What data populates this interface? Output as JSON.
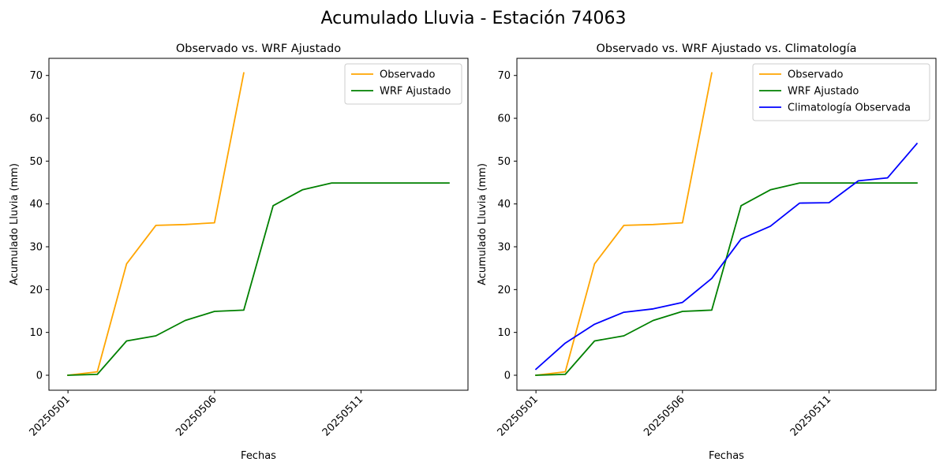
{
  "figure": {
    "suptitle": "Acumulado Lluvia - Estación 74063"
  },
  "chart_data": [
    {
      "type": "line",
      "title": "Observado vs. WRF Ajustado",
      "xlabel": "Fechas",
      "ylabel": "Acumulado Lluvia (mm)",
      "x": [
        "20250501",
        "20250502",
        "20250503",
        "20250504",
        "20250505",
        "20250506",
        "20250507",
        "20250508",
        "20250509",
        "20250510",
        "20250511",
        "20250512",
        "20250513",
        "20250514"
      ],
      "xticks": [
        "20250501",
        "20250506",
        "20250511"
      ],
      "yticks": [
        0,
        10,
        20,
        30,
        40,
        50,
        60,
        70
      ],
      "xlim": [
        -0.65,
        13.65
      ],
      "ylim": [
        -3.5,
        74.0
      ],
      "legend": "upper-right",
      "grid": false,
      "series": [
        {
          "name": "Observado",
          "color": "#FFA500",
          "values": [
            0,
            0.8,
            26,
            35,
            35.2,
            35.6,
            70.6,
            null,
            null,
            null,
            null,
            null,
            null,
            null
          ]
        },
        {
          "name": "WRF Ajustado",
          "color": "#008000",
          "values": [
            0,
            0.2,
            8,
            9.2,
            12.8,
            14.9,
            15.2,
            39.6,
            43.3,
            44.9,
            44.9,
            44.9,
            44.9,
            44.9
          ]
        }
      ]
    },
    {
      "type": "line",
      "title": "Observado vs. WRF Ajustado vs. Climatología",
      "xlabel": "Fechas",
      "ylabel": "Acumulado Lluvia (mm)",
      "x": [
        "20250501",
        "20250502",
        "20250503",
        "20250504",
        "20250505",
        "20250506",
        "20250507",
        "20250508",
        "20250509",
        "20250510",
        "20250511",
        "20250512",
        "20250513",
        "20250514"
      ],
      "xticks": [
        "20250501",
        "20250506",
        "20250511"
      ],
      "yticks": [
        0,
        10,
        20,
        30,
        40,
        50,
        60,
        70
      ],
      "xlim": [
        -0.65,
        13.65
      ],
      "ylim": [
        -3.5,
        74.0
      ],
      "legend": "upper-right",
      "grid": false,
      "series": [
        {
          "name": "Observado",
          "color": "#FFA500",
          "values": [
            0,
            0.8,
            26,
            35,
            35.2,
            35.6,
            70.6,
            null,
            null,
            null,
            null,
            null,
            null,
            null
          ]
        },
        {
          "name": "WRF Ajustado",
          "color": "#008000",
          "values": [
            0,
            0.2,
            8,
            9.2,
            12.8,
            14.9,
            15.2,
            39.6,
            43.3,
            44.9,
            44.9,
            44.9,
            44.9,
            44.9
          ]
        },
        {
          "name": "Climatología Observada",
          "color": "#0000FF",
          "values": [
            1.4,
            7.5,
            11.9,
            14.7,
            15.5,
            17.0,
            22.6,
            31.8,
            34.8,
            40.2,
            40.3,
            45.4,
            46.1,
            54.1
          ]
        }
      ]
    }
  ]
}
